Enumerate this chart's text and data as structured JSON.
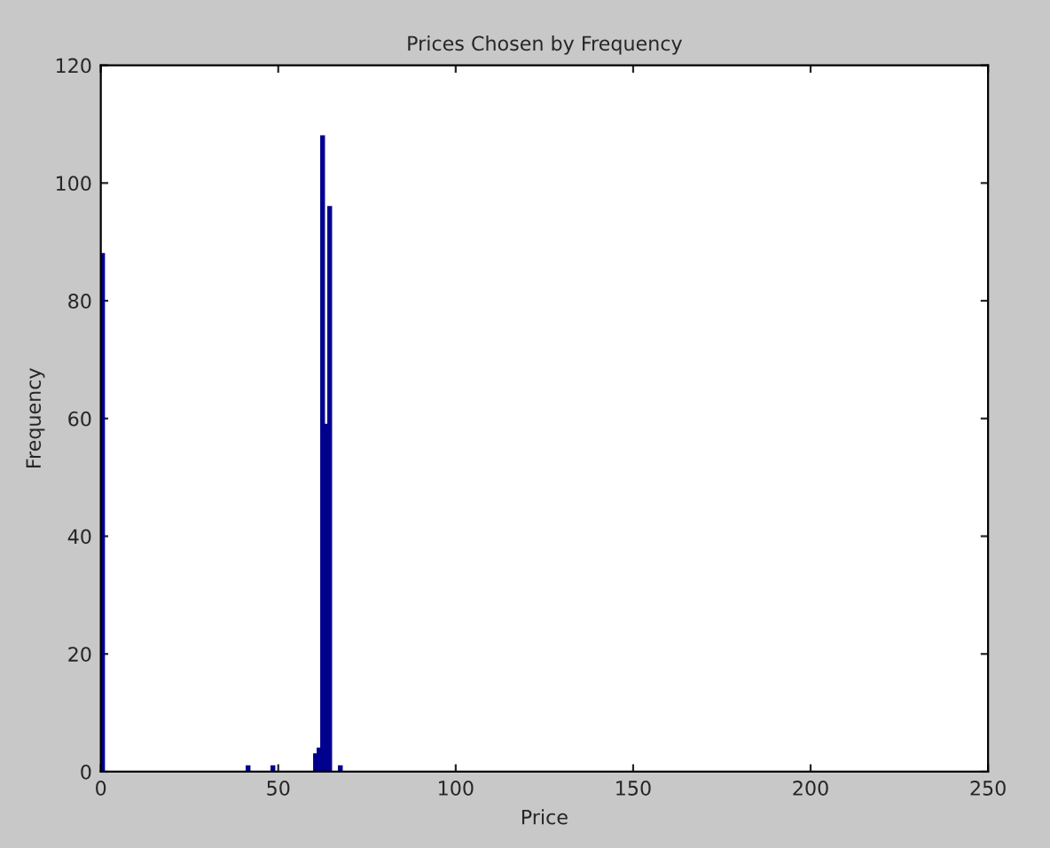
{
  "chart_data": {
    "type": "histogram",
    "title": "Prices Chosen by Frequency",
    "xlabel": "Price",
    "ylabel": "Frequency",
    "bins": [
      0,
      1,
      41,
      42,
      48,
      49,
      60,
      61,
      62,
      63,
      64,
      65,
      67,
      68,
      200
    ],
    "values": [
      88,
      0,
      1,
      0,
      1,
      0,
      3,
      4,
      108,
      59,
      96,
      0,
      1,
      0
    ],
    "color": "#00008f",
    "xlim": [
      0,
      250
    ],
    "xticks": [
      0,
      50,
      100,
      150,
      200,
      250
    ],
    "ylim": [
      0,
      120
    ],
    "yticks": [
      0,
      20,
      40,
      60,
      80,
      100,
      120
    ],
    "grid": false
  }
}
